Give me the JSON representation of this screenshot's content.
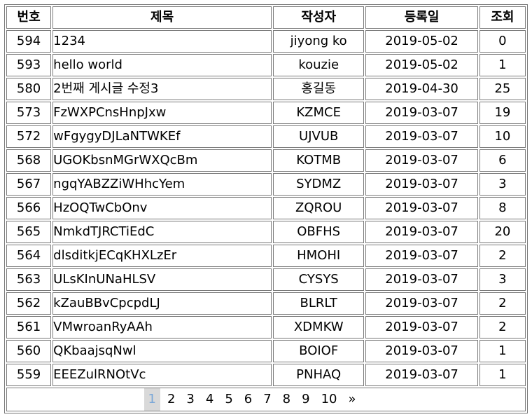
{
  "columns": {
    "no": "번호",
    "title": "제목",
    "author": "작성자",
    "date": "등록일",
    "views": "조회"
  },
  "rows": [
    {
      "no": "594",
      "title": "1234",
      "author": "jiyong ko",
      "date": "2019-05-02",
      "views": "0"
    },
    {
      "no": "593",
      "title": "hello world",
      "author": "kouzie",
      "date": "2019-05-02",
      "views": "1"
    },
    {
      "no": "580",
      "title": "2번째 게시글 수정3",
      "author": "홍길동",
      "date": "2019-04-30",
      "views": "25"
    },
    {
      "no": "573",
      "title": "FzWXPCnsHnpJxw",
      "author": "KZMCE",
      "date": "2019-03-07",
      "views": "19"
    },
    {
      "no": "572",
      "title": "wFgygyDJLaNTWKEf",
      "author": "UJVUB",
      "date": "2019-03-07",
      "views": "10"
    },
    {
      "no": "568",
      "title": "UGOKbsnMGrWXQcBm",
      "author": "KOTMB",
      "date": "2019-03-07",
      "views": "6"
    },
    {
      "no": "567",
      "title": "ngqYABZZiWHhcYem",
      "author": "SYDMZ",
      "date": "2019-03-07",
      "views": "3"
    },
    {
      "no": "566",
      "title": "HzOQTwCbOnv",
      "author": "ZQROU",
      "date": "2019-03-07",
      "views": "8"
    },
    {
      "no": "565",
      "title": "NmkdTJRCTiEdC",
      "author": "OBFHS",
      "date": "2019-03-07",
      "views": "20"
    },
    {
      "no": "564",
      "title": "dlsditkjECqKHXLzEr",
      "author": "HMOHI",
      "date": "2019-03-07",
      "views": "2"
    },
    {
      "no": "563",
      "title": "ULsKInUNaHLSV",
      "author": "CYSYS",
      "date": "2019-03-07",
      "views": "3"
    },
    {
      "no": "562",
      "title": "kZauBBvCpcpdLJ",
      "author": "BLRLT",
      "date": "2019-03-07",
      "views": "2"
    },
    {
      "no": "561",
      "title": "VMwroanRyAAh",
      "author": "XDMKW",
      "date": "2019-03-07",
      "views": "2"
    },
    {
      "no": "560",
      "title": "QKbaajsqNwl",
      "author": "BOIOF",
      "date": "2019-03-07",
      "views": "1"
    },
    {
      "no": "559",
      "title": "EEEZulRNOtVc",
      "author": "PNHAQ",
      "date": "2019-03-07",
      "views": "1"
    }
  ],
  "pagination": {
    "pages": [
      "1",
      "2",
      "3",
      "4",
      "5",
      "6",
      "7",
      "8",
      "9",
      "10"
    ],
    "current": "1",
    "next_label": "»"
  }
}
